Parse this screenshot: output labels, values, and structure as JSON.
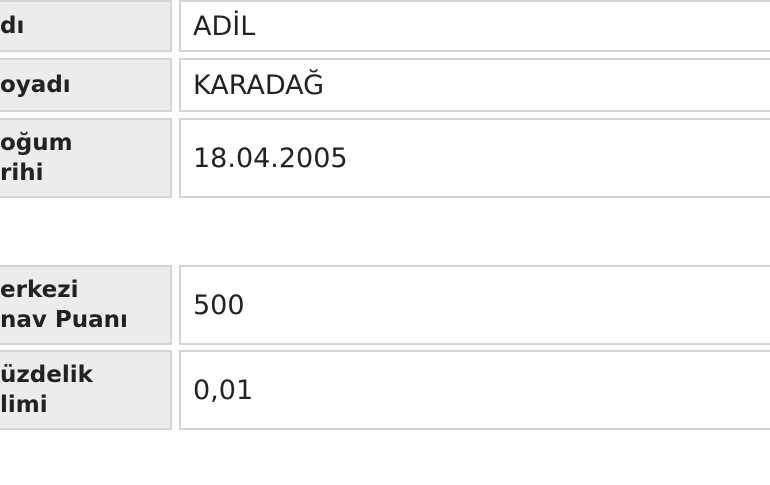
{
  "table": {
    "groups": [
      {
        "rows": [
          {
            "label": [
              "dı"
            ],
            "value": "ADİL"
          },
          {
            "label": [
              "oyadı"
            ],
            "value": "KARADAĞ"
          },
          {
            "label": [
              "oğum",
              "rihi"
            ],
            "value": "18.04.2005"
          }
        ]
      },
      {
        "rows": [
          {
            "label": [
              "erkezi",
              "nav Puanı"
            ],
            "value": "500"
          },
          {
            "label": [
              "üzdelik",
              "limi"
            ],
            "value": "0,01"
          }
        ]
      }
    ]
  }
}
